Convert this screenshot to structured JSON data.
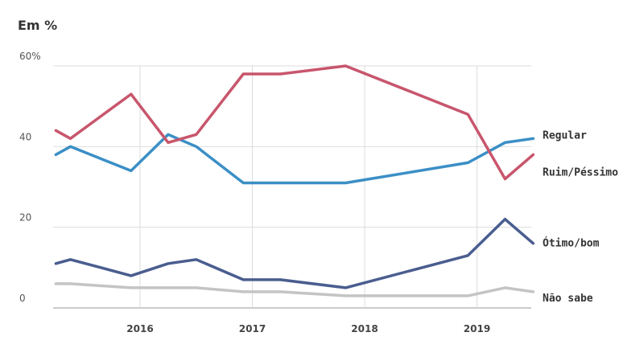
{
  "chart_data": {
    "type": "line",
    "title": "Em %",
    "xlabel": "",
    "ylabel": "",
    "ylim": [
      0,
      60
    ],
    "yticks": [
      0,
      20,
      40,
      60
    ],
    "ytick_labels": [
      "0",
      "20",
      "40",
      "60%"
    ],
    "xlim": [
      2015.25,
      2019.5
    ],
    "xticks": [
      2016,
      2017,
      2018,
      2019
    ],
    "xtick_labels": [
      "2016",
      "2017",
      "2018",
      "2019"
    ],
    "grid": true,
    "series": [
      {
        "name": "Regular",
        "color": "#3b8fc6",
        "x": [
          2015.25,
          2015.38,
          2015.92,
          2016.25,
          2016.5,
          2016.92,
          2017.25,
          2017.83,
          2018.92,
          2019.25,
          2019.5
        ],
        "values": [
          38,
          40,
          34,
          43,
          40,
          31,
          31,
          31,
          36,
          41,
          42
        ]
      },
      {
        "name": "Ruim/Péssimo",
        "color": "#c8566d",
        "x": [
          2015.25,
          2015.38,
          2015.92,
          2016.25,
          2016.5,
          2016.92,
          2017.25,
          2017.83,
          2018.92,
          2019.25,
          2019.5
        ],
        "values": [
          44,
          42,
          53,
          41,
          43,
          58,
          58,
          60,
          48,
          32,
          38
        ]
      },
      {
        "name": "Ótimo/bom",
        "color": "#4a5d8f",
        "x": [
          2015.25,
          2015.38,
          2015.92,
          2016.25,
          2016.5,
          2016.92,
          2017.25,
          2017.83,
          2018.92,
          2019.25,
          2019.5
        ],
        "values": [
          11,
          12,
          8,
          11,
          12,
          7,
          7,
          5,
          13,
          22,
          16
        ]
      },
      {
        "name": "Não sabe",
        "color": "#c4c4c4",
        "x": [
          2015.25,
          2015.38,
          2015.92,
          2016.25,
          2016.5,
          2016.92,
          2017.25,
          2017.83,
          2018.92,
          2019.25,
          2019.5
        ],
        "values": [
          6,
          6,
          5,
          5,
          5,
          4,
          4,
          3,
          3,
          5,
          4
        ]
      }
    ],
    "legend_position": "right-end-labels"
  }
}
